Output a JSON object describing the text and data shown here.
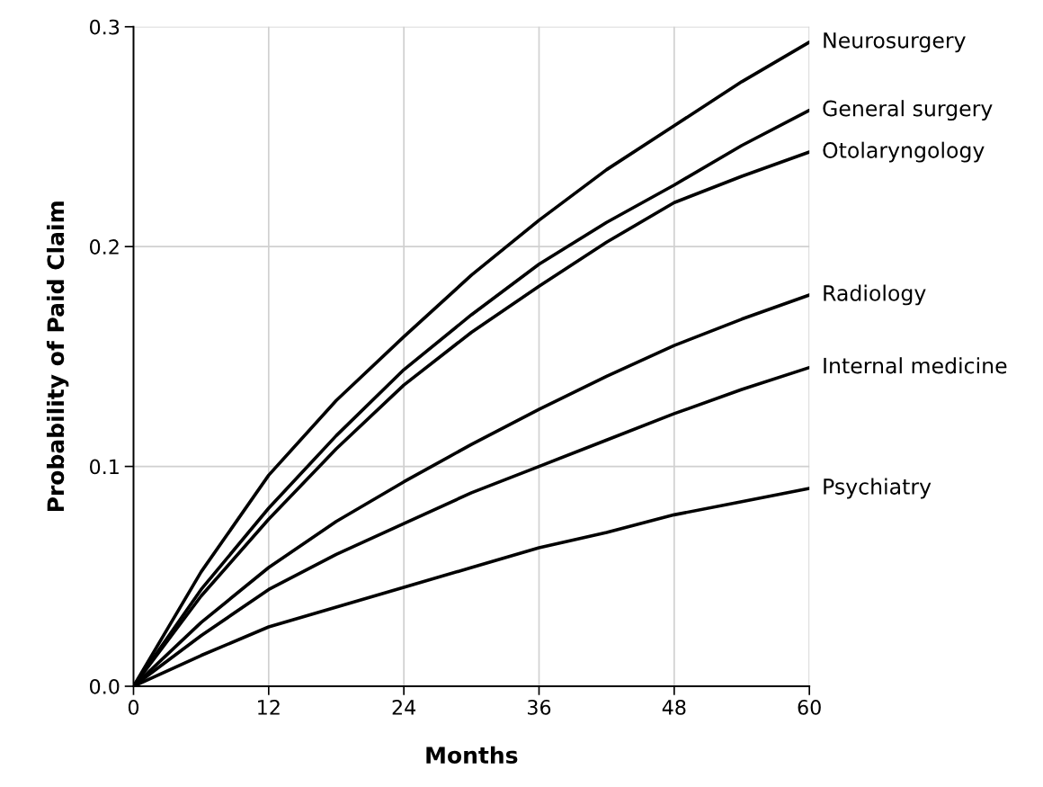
{
  "chart_data": {
    "type": "line",
    "xlabel": "Months",
    "ylabel": "Probability of Paid Claim",
    "x": [
      0,
      6,
      12,
      18,
      24,
      30,
      36,
      42,
      48,
      54,
      60
    ],
    "series": [
      {
        "name": "Neurosurgery",
        "color": "#000000",
        "values": [
          0,
          0.052,
          0.096,
          0.13,
          0.159,
          0.187,
          0.212,
          0.235,
          0.255,
          0.275,
          0.293
        ]
      },
      {
        "name": "General surgery",
        "color": "#000000",
        "values": [
          0,
          0.044,
          0.081,
          0.114,
          0.144,
          0.169,
          0.192,
          0.211,
          0.228,
          0.246,
          0.262
        ]
      },
      {
        "name": "Otolaryngology",
        "color": "#000000",
        "values": [
          0,
          0.041,
          0.076,
          0.108,
          0.137,
          0.161,
          0.182,
          0.202,
          0.22,
          0.232,
          0.243
        ]
      },
      {
        "name": "Radiology",
        "color": "#000000",
        "values": [
          0,
          0.029,
          0.054,
          0.075,
          0.093,
          0.11,
          0.126,
          0.141,
          0.155,
          0.167,
          0.178
        ]
      },
      {
        "name": "Internal medicine",
        "color": "#000000",
        "values": [
          0,
          0.023,
          0.044,
          0.06,
          0.074,
          0.088,
          0.1,
          0.112,
          0.124,
          0.135,
          0.145
        ]
      },
      {
        "name": "Psychiatry",
        "color": "#000000",
        "values": [
          0,
          0.014,
          0.027,
          0.036,
          0.045,
          0.054,
          0.063,
          0.07,
          0.078,
          0.084,
          0.09
        ]
      }
    ],
    "xlim": [
      0,
      60
    ],
    "ylim": [
      0,
      0.3
    ],
    "xticks": [
      0,
      12,
      24,
      36,
      48,
      60
    ],
    "yticks": [
      {
        "value": 0,
        "label": "0.0"
      },
      0.1,
      0.2,
      0.3
    ],
    "grid": true,
    "legend": false,
    "marker": "none",
    "line_style": "solid"
  }
}
